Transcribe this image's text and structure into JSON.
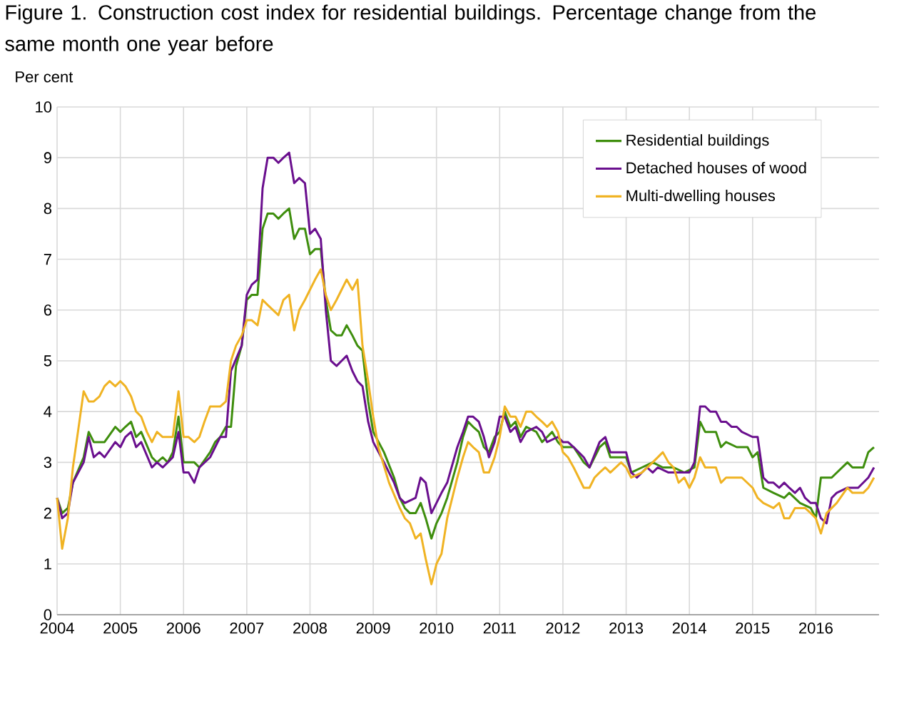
{
  "chart_data": {
    "type": "line",
    "title": "Figure 1. Construction cost index for residential buildings. Percentage change from the same month one year before",
    "ylabel": "Per cent",
    "xlim": [
      2004,
      2017
    ],
    "xticks": [
      2004,
      2005,
      2006,
      2007,
      2008,
      2009,
      2010,
      2011,
      2012,
      2013,
      2014,
      2015,
      2016
    ],
    "ylim": [
      0,
      10
    ],
    "yticks": [
      0,
      1,
      2,
      3,
      4,
      5,
      6,
      7,
      8,
      9,
      10
    ],
    "grid": true,
    "legend": "top right",
    "marker": "none",
    "line_style": "solid",
    "series": [
      {
        "name": "Residential buildings",
        "color": "#3e8e0d",
        "x": [
          2004.0,
          2004.08,
          2004.17,
          2004.25,
          2004.42,
          2004.5,
          2004.58,
          2004.75,
          2004.92,
          2005.0,
          2005.08,
          2005.17,
          2005.25,
          2005.33,
          2005.5,
          2005.58,
          2005.67,
          2005.75,
          2005.83,
          2005.92,
          2006.0,
          2006.17,
          2006.25,
          2006.42,
          2006.5,
          2006.58,
          2006.67,
          2006.75,
          2006.83,
          2006.92,
          2007.0,
          2007.08,
          2007.17,
          2007.25,
          2007.33,
          2007.42,
          2007.5,
          2007.58,
          2007.67,
          2007.75,
          2007.83,
          2007.92,
          2008.0,
          2008.08,
          2008.17,
          2008.25,
          2008.33,
          2008.42,
          2008.5,
          2008.58,
          2008.67,
          2008.75,
          2008.83,
          2008.92,
          2009.0,
          2009.17,
          2009.33,
          2009.42,
          2009.5,
          2009.58,
          2009.67,
          2009.75,
          2009.83,
          2009.92,
          2010.0,
          2010.08,
          2010.17,
          2010.33,
          2010.42,
          2010.5,
          2010.58,
          2010.67,
          2010.75,
          2010.83,
          2010.92,
          2011.0,
          2011.08,
          2011.17,
          2011.25,
          2011.33,
          2011.42,
          2011.58,
          2011.67,
          2011.83,
          2011.92,
          2012.0,
          2012.08,
          2012.17,
          2012.33,
          2012.42,
          2012.58,
          2012.67,
          2012.75,
          2013.0,
          2013.08,
          2013.25,
          2013.42,
          2013.58,
          2013.75,
          2013.92,
          2014.08,
          2014.17,
          2014.25,
          2014.42,
          2014.5,
          2014.58,
          2014.75,
          2014.92,
          2015.0,
          2015.08,
          2015.17,
          2015.33,
          2015.5,
          2015.58,
          2015.75,
          2015.92,
          2016.0,
          2016.08,
          2016.25,
          2016.5,
          2016.58,
          2016.75,
          2016.83,
          2016.92
        ],
        "values": [
          2.3,
          2.0,
          2.1,
          2.6,
          3.1,
          3.6,
          3.4,
          3.4,
          3.7,
          3.6,
          3.7,
          3.8,
          3.5,
          3.6,
          3.1,
          3.0,
          3.1,
          3.0,
          3.2,
          3.9,
          3.0,
          3.0,
          2.9,
          3.2,
          3.4,
          3.5,
          3.7,
          3.7,
          4.9,
          5.3,
          6.2,
          6.3,
          6.3,
          7.6,
          7.9,
          7.9,
          7.8,
          7.9,
          8.0,
          7.4,
          7.6,
          7.6,
          7.1,
          7.2,
          7.2,
          6.2,
          5.6,
          5.5,
          5.5,
          5.7,
          5.5,
          5.3,
          5.2,
          4.2,
          3.6,
          3.2,
          2.7,
          2.3,
          2.1,
          2.0,
          2.0,
          2.2,
          1.9,
          1.5,
          1.8,
          2.0,
          2.3,
          3.0,
          3.5,
          3.8,
          3.7,
          3.6,
          3.3,
          3.2,
          3.5,
          3.6,
          4.0,
          3.7,
          3.8,
          3.5,
          3.7,
          3.6,
          3.4,
          3.6,
          3.4,
          3.3,
          3.3,
          3.3,
          3.0,
          2.9,
          3.3,
          3.4,
          3.1,
          3.1,
          2.8,
          2.9,
          3.0,
          2.9,
          2.9,
          2.8,
          2.9,
          3.8,
          3.6,
          3.6,
          3.3,
          3.4,
          3.3,
          3.3,
          3.1,
          3.2,
          2.5,
          2.4,
          2.3,
          2.4,
          2.2,
          2.1,
          1.9,
          2.7,
          2.7,
          3.0,
          2.9,
          2.9,
          3.2,
          3.3
        ]
      },
      {
        "name": "Detached houses of wood",
        "color": "#6a0f8e",
        "x": [
          2004.0,
          2004.08,
          2004.17,
          2004.25,
          2004.42,
          2004.5,
          2004.58,
          2004.67,
          2004.75,
          2004.92,
          2005.0,
          2005.08,
          2005.17,
          2005.25,
          2005.33,
          2005.5,
          2005.58,
          2005.67,
          2005.75,
          2005.83,
          2005.92,
          2006.0,
          2006.08,
          2006.17,
          2006.25,
          2006.42,
          2006.5,
          2006.58,
          2006.67,
          2006.75,
          2006.92,
          2007.0,
          2007.08,
          2007.17,
          2007.25,
          2007.33,
          2007.42,
          2007.5,
          2007.58,
          2007.67,
          2007.75,
          2007.83,
          2007.92,
          2008.0,
          2008.08,
          2008.17,
          2008.25,
          2008.33,
          2008.42,
          2008.5,
          2008.58,
          2008.67,
          2008.75,
          2008.83,
          2008.92,
          2009.0,
          2009.17,
          2009.33,
          2009.42,
          2009.5,
          2009.67,
          2009.75,
          2009.83,
          2009.92,
          2010.0,
          2010.08,
          2010.17,
          2010.33,
          2010.42,
          2010.5,
          2010.58,
          2010.67,
          2010.75,
          2010.83,
          2010.92,
          2011.0,
          2011.08,
          2011.17,
          2011.25,
          2011.33,
          2011.42,
          2011.58,
          2011.67,
          2011.75,
          2011.92,
          2012.0,
          2012.08,
          2012.17,
          2012.33,
          2012.42,
          2012.58,
          2012.67,
          2012.75,
          2013.0,
          2013.08,
          2013.17,
          2013.33,
          2013.42,
          2013.5,
          2013.67,
          2013.83,
          2014.0,
          2014.08,
          2014.17,
          2014.25,
          2014.33,
          2014.42,
          2014.5,
          2014.58,
          2014.67,
          2014.75,
          2014.83,
          2015.0,
          2015.08,
          2015.17,
          2015.25,
          2015.33,
          2015.42,
          2015.5,
          2015.58,
          2015.67,
          2015.75,
          2015.83,
          2015.92,
          2016.0,
          2016.08,
          2016.17,
          2016.25,
          2016.33,
          2016.5,
          2016.67,
          2016.83,
          2016.92
        ],
        "values": [
          2.3,
          1.9,
          2.0,
          2.6,
          3.0,
          3.5,
          3.1,
          3.2,
          3.1,
          3.4,
          3.3,
          3.5,
          3.6,
          3.3,
          3.4,
          2.9,
          3.0,
          2.9,
          3.0,
          3.1,
          3.6,
          2.8,
          2.8,
          2.6,
          2.9,
          3.1,
          3.3,
          3.5,
          3.5,
          4.8,
          5.3,
          6.3,
          6.5,
          6.6,
          8.4,
          9.0,
          9.0,
          8.9,
          9.0,
          9.1,
          8.5,
          8.6,
          8.5,
          7.5,
          7.6,
          7.4,
          6.0,
          5.0,
          4.9,
          5.0,
          5.1,
          4.8,
          4.6,
          4.5,
          3.8,
          3.4,
          3.0,
          2.6,
          2.3,
          2.2,
          2.3,
          2.7,
          2.6,
          2.0,
          2.2,
          2.4,
          2.6,
          3.3,
          3.6,
          3.9,
          3.9,
          3.8,
          3.5,
          3.1,
          3.4,
          3.9,
          3.9,
          3.6,
          3.7,
          3.4,
          3.6,
          3.7,
          3.6,
          3.4,
          3.5,
          3.4,
          3.4,
          3.3,
          3.1,
          2.9,
          3.4,
          3.5,
          3.2,
          3.2,
          2.8,
          2.7,
          2.9,
          2.8,
          2.9,
          2.8,
          2.8,
          2.8,
          3.0,
          4.1,
          4.1,
          4.0,
          4.0,
          3.8,
          3.8,
          3.7,
          3.7,
          3.6,
          3.5,
          3.5,
          2.7,
          2.6,
          2.6,
          2.5,
          2.6,
          2.5,
          2.4,
          2.5,
          2.3,
          2.2,
          2.2,
          1.9,
          1.8,
          2.3,
          2.4,
          2.5,
          2.5,
          2.7,
          2.9
        ]
      },
      {
        "name": "Multi-dwelling houses",
        "color": "#f0b323",
        "x": [
          2004.0,
          2004.08,
          2004.17,
          2004.25,
          2004.33,
          2004.42,
          2004.5,
          2004.58,
          2004.67,
          2004.75,
          2004.83,
          2004.92,
          2005.0,
          2005.08,
          2005.17,
          2005.25,
          2005.33,
          2005.42,
          2005.5,
          2005.58,
          2005.67,
          2005.75,
          2005.83,
          2005.92,
          2006.0,
          2006.08,
          2006.17,
          2006.25,
          2006.33,
          2006.42,
          2006.5,
          2006.58,
          2006.67,
          2006.75,
          2006.83,
          2006.92,
          2007.0,
          2007.08,
          2007.17,
          2007.25,
          2007.33,
          2007.5,
          2007.58,
          2007.67,
          2007.75,
          2007.83,
          2007.92,
          2008.0,
          2008.08,
          2008.17,
          2008.25,
          2008.33,
          2008.42,
          2008.5,
          2008.58,
          2008.67,
          2008.75,
          2008.83,
          2008.92,
          2009.0,
          2009.08,
          2009.25,
          2009.42,
          2009.5,
          2009.58,
          2009.67,
          2009.75,
          2009.83,
          2009.92,
          2010.0,
          2010.08,
          2010.17,
          2010.33,
          2010.42,
          2010.5,
          2010.58,
          2010.67,
          2010.75,
          2010.83,
          2010.92,
          2011.0,
          2011.08,
          2011.17,
          2011.25,
          2011.33,
          2011.42,
          2011.5,
          2011.58,
          2011.67,
          2011.75,
          2011.83,
          2011.92,
          2012.0,
          2012.08,
          2012.17,
          2012.25,
          2012.33,
          2012.42,
          2012.5,
          2012.58,
          2012.67,
          2012.75,
          2012.92,
          2013.0,
          2013.08,
          2013.25,
          2013.42,
          2013.58,
          2013.67,
          2013.75,
          2013.83,
          2013.92,
          2014.0,
          2014.08,
          2014.17,
          2014.25,
          2014.42,
          2014.5,
          2014.58,
          2014.83,
          2015.0,
          2015.08,
          2015.17,
          2015.33,
          2015.42,
          2015.5,
          2015.58,
          2015.67,
          2015.83,
          2015.92,
          2016.0,
          2016.08,
          2016.17,
          2016.33,
          2016.5,
          2016.58,
          2016.75,
          2016.83,
          2016.92
        ],
        "values": [
          2.3,
          1.3,
          1.9,
          2.9,
          3.6,
          4.4,
          4.2,
          4.2,
          4.3,
          4.5,
          4.6,
          4.5,
          4.6,
          4.5,
          4.3,
          4.0,
          3.9,
          3.6,
          3.4,
          3.6,
          3.5,
          3.5,
          3.5,
          4.4,
          3.5,
          3.5,
          3.4,
          3.5,
          3.8,
          4.1,
          4.1,
          4.1,
          4.2,
          5.0,
          5.3,
          5.5,
          5.8,
          5.8,
          5.7,
          6.2,
          6.1,
          5.9,
          6.2,
          6.3,
          5.6,
          6.0,
          6.2,
          6.4,
          6.6,
          6.8,
          6.3,
          6.0,
          6.2,
          6.4,
          6.6,
          6.4,
          6.6,
          5.3,
          4.6,
          3.9,
          3.3,
          2.6,
          2.1,
          1.9,
          1.8,
          1.5,
          1.6,
          1.1,
          0.6,
          1.0,
          1.2,
          1.9,
          2.7,
          3.1,
          3.4,
          3.3,
          3.2,
          2.8,
          2.8,
          3.1,
          3.5,
          4.1,
          3.9,
          3.9,
          3.7,
          4.0,
          4.0,
          3.9,
          3.8,
          3.7,
          3.8,
          3.6,
          3.2,
          3.1,
          2.9,
          2.7,
          2.5,
          2.5,
          2.7,
          2.8,
          2.9,
          2.8,
          3.0,
          2.9,
          2.7,
          2.8,
          3.0,
          3.2,
          3.0,
          2.9,
          2.6,
          2.7,
          2.5,
          2.7,
          3.1,
          2.9,
          2.9,
          2.6,
          2.7,
          2.7,
          2.5,
          2.3,
          2.2,
          2.1,
          2.2,
          1.9,
          1.9,
          2.1,
          2.1,
          2.0,
          1.9,
          1.6,
          2.0,
          2.2,
          2.5,
          2.4,
          2.4,
          2.5,
          2.7
        ]
      }
    ]
  }
}
